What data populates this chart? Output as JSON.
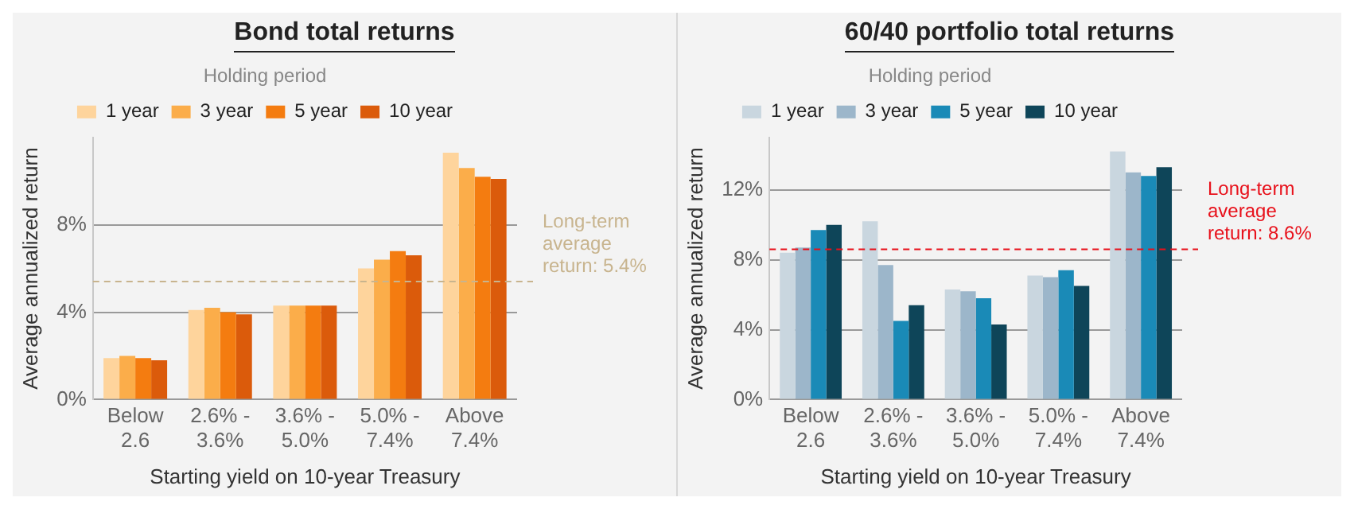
{
  "chart_data": [
    {
      "type": "bar",
      "title": "Bond total returns",
      "xlabel": "Starting yield on 10-year Treasury",
      "ylabel": "Average annualized return",
      "legend_title": "Holding period",
      "legend": "top",
      "categories": [
        "Below 2.6",
        "2.6% - 3.6%",
        "3.6% - 5.0%",
        "5.0% - 7.4%",
        "Above 7.4%"
      ],
      "series": [
        {
          "name": "1 year",
          "color": "#fed49c",
          "values": [
            1.9,
            4.1,
            4.3,
            6.0,
            11.3
          ]
        },
        {
          "name": "3 year",
          "color": "#fbad4a",
          "values": [
            2.0,
            4.2,
            4.3,
            6.4,
            10.6
          ]
        },
        {
          "name": "5 year",
          "color": "#f47c10",
          "values": [
            1.9,
            4.0,
            4.3,
            6.8,
            10.2
          ]
        },
        {
          "name": "10 year",
          "color": "#db5b0b",
          "values": [
            1.8,
            3.9,
            4.3,
            6.6,
            10.1
          ]
        }
      ],
      "ylim": [
        0,
        12
      ],
      "yticks": [
        {
          "value": 0,
          "label": "0%"
        },
        {
          "value": 4,
          "label": "4%"
        },
        {
          "value": 8,
          "label": "8%"
        }
      ],
      "grid": "y",
      "ref_lines": [
        {
          "axis": "y",
          "value": 5.4,
          "label": "Long-term average return: 5.4%",
          "color": "#c8b48e",
          "line_style": "dashed"
        }
      ]
    },
    {
      "type": "bar",
      "title": "60/40 portfolio total returns",
      "xlabel": "Starting yield on 10-year Treasury",
      "ylabel": "Average annualized return",
      "legend_title": "Holding period",
      "legend": "top",
      "categories": [
        "Below 2.6",
        "2.6% - 3.6%",
        "3.6% - 5.0%",
        "5.0% - 7.4%",
        "Above 7.4%"
      ],
      "series": [
        {
          "name": "1 year",
          "color": "#c9d6df",
          "values": [
            8.4,
            10.2,
            6.3,
            7.1,
            14.2
          ]
        },
        {
          "name": "3 year",
          "color": "#9cb6ca",
          "values": [
            8.7,
            7.7,
            6.2,
            7.0,
            13.0
          ]
        },
        {
          "name": "5 year",
          "color": "#1a8ab7",
          "values": [
            9.7,
            4.5,
            5.8,
            7.4,
            12.8
          ]
        },
        {
          "name": "10 year",
          "color": "#0e4559",
          "values": [
            10.0,
            5.4,
            4.3,
            6.5,
            13.3
          ]
        }
      ],
      "ylim": [
        0,
        15
      ],
      "yticks": [
        {
          "value": 0,
          "label": "0%"
        },
        {
          "value": 4,
          "label": "4%"
        },
        {
          "value": 8,
          "label": "8%"
        },
        {
          "value": 12,
          "label": "12%"
        }
      ],
      "grid": "y",
      "ref_lines": [
        {
          "axis": "y",
          "value": 8.6,
          "label": "Long-term average return: 8.6%",
          "color": "#e8111b",
          "line_style": "dashed"
        }
      ]
    }
  ]
}
